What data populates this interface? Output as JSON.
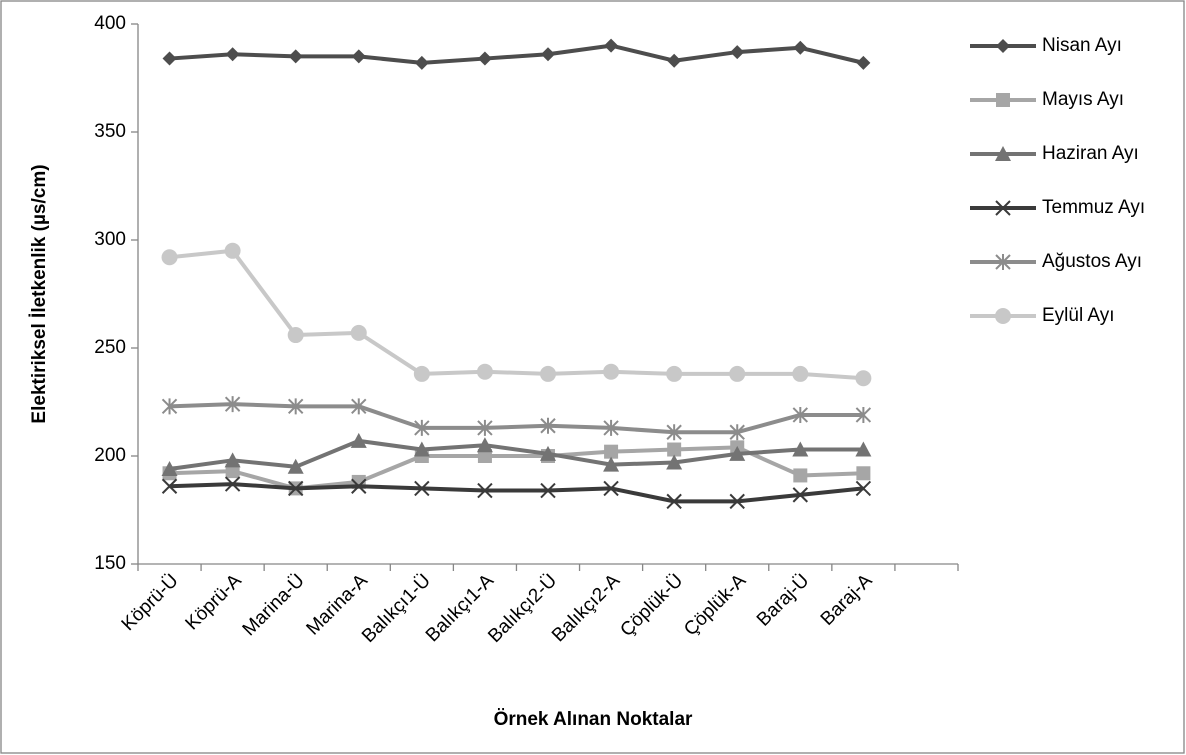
{
  "chart_data": {
    "type": "line",
    "y_label": "Elektiriksel İletkenlik (µs/cm)",
    "x_label": "Örnek Alınan Noktalar",
    "categories": [
      "Köprü-Ü",
      "Köprü-A",
      "Marina-Ü",
      "Marina-A",
      "Balıkçı1-Ü",
      "Balıkçı1-A",
      "Balıkçı2-Ü",
      "Balıkçı2-A",
      "Çöplük-Ü",
      "Çöplük-A",
      "Baraj-Ü",
      "Baraj-A",
      null
    ],
    "series": [
      {
        "name": "Nisan Ayı",
        "color": "#4d4d4d",
        "marker": "diamond",
        "values": [
          384,
          386,
          385,
          385,
          382,
          384,
          386,
          390,
          383,
          387,
          389,
          382,
          null
        ]
      },
      {
        "name": "Mayıs Ayı",
        "color": "#a6a6a6",
        "marker": "square",
        "values": [
          192,
          193,
          185,
          188,
          200,
          200,
          200,
          202,
          203,
          204,
          191,
          192,
          null
        ]
      },
      {
        "name": "Haziran Ayı",
        "color": "#737373",
        "marker": "triangle",
        "values": [
          194,
          198,
          195,
          207,
          203,
          205,
          201,
          196,
          197,
          201,
          203,
          203,
          null
        ]
      },
      {
        "name": "Temmuz Ayı",
        "color": "#3a3a3a",
        "marker": "x",
        "values": [
          186,
          187,
          185,
          186,
          185,
          184,
          184,
          185,
          179,
          179,
          182,
          185,
          null
        ]
      },
      {
        "name": "Ağustos Ayı",
        "color": "#8c8c8c",
        "marker": "star",
        "values": [
          223,
          224,
          223,
          223,
          213,
          213,
          214,
          213,
          211,
          211,
          219,
          219,
          null
        ]
      },
      {
        "name": "Eylül Ayı",
        "color": "#c8c8c8",
        "marker": "circle",
        "values": [
          292,
          295,
          256,
          257,
          238,
          239,
          238,
          239,
          238,
          238,
          238,
          236,
          null
        ]
      }
    ],
    "ylim": [
      150,
      400
    ],
    "yticks": [
      150,
      200,
      250,
      300,
      350,
      400
    ],
    "grid": false,
    "legend": "right"
  }
}
